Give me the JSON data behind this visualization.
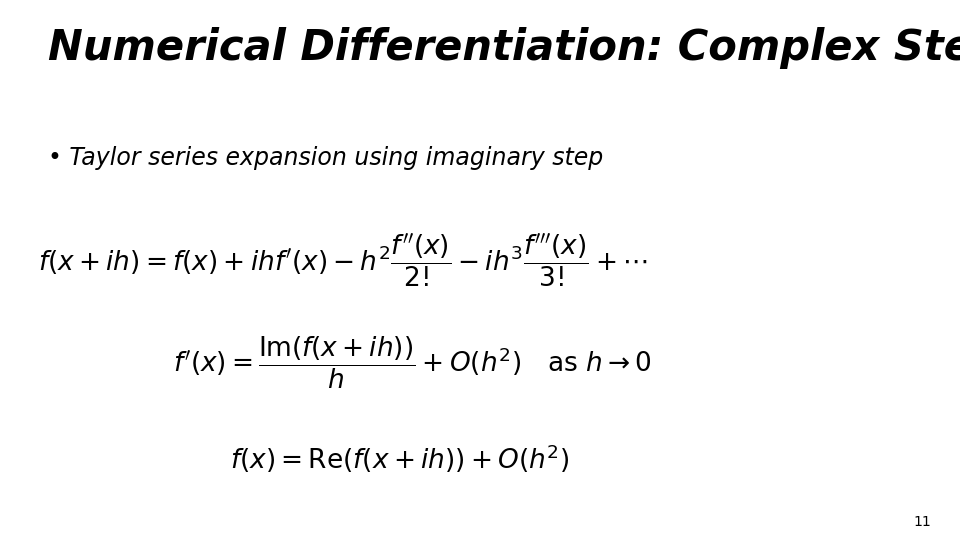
{
  "title": "Numerical Differentiation: Complex Step",
  "bullet": "Taylor series expansion using imaginary step",
  "page_number": "11",
  "bg_color": "#ffffff",
  "text_color": "#000000",
  "title_fontsize": 30,
  "bullet_fontsize": 17,
  "eq_fontsize": 19,
  "page_fontsize": 10
}
